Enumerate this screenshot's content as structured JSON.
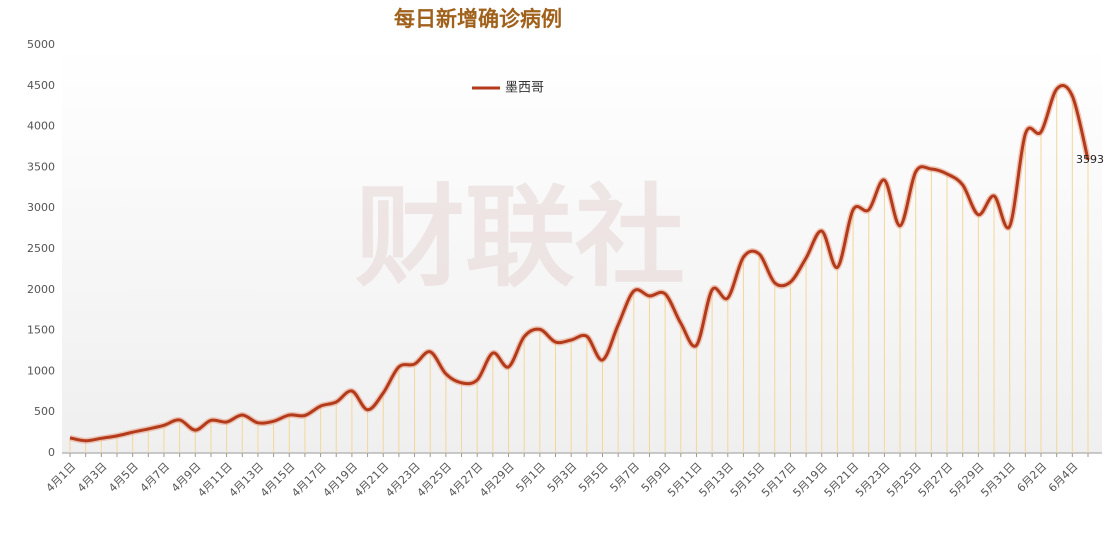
{
  "chart_data": {
    "type": "line",
    "title": "每日新增确诊病例",
    "watermark": "财联社",
    "categories": [
      "4月1日",
      null,
      "4月3日",
      null,
      "4月5日",
      null,
      "4月7日",
      null,
      "4月9日",
      null,
      "4月11日",
      null,
      "4月13日",
      null,
      "4月15日",
      null,
      "4月17日",
      null,
      "4月19日",
      null,
      "4月21日",
      null,
      "4月23日",
      null,
      "4月25日",
      null,
      "4月27日",
      null,
      "4月29日",
      null,
      "5月1日",
      null,
      "5月3日",
      null,
      "5月5日",
      null,
      "5月7日",
      null,
      "5月9日",
      null,
      "5月11日",
      null,
      "5月13日",
      null,
      "5月15日",
      null,
      "5月17日",
      null,
      "5月19日",
      null,
      "5月21日",
      null,
      "5月23日",
      null,
      "5月25日",
      null,
      "5月27日",
      null,
      "5月29日",
      null,
      "5月31日",
      null,
      "6月2日",
      null,
      "6月4日",
      null
    ],
    "series": [
      {
        "name": "墨西哥",
        "color": "#b33a1a",
        "values": [
          185,
          150,
          180,
          210,
          255,
          295,
          340,
          405,
          280,
          400,
          380,
          465,
          370,
          390,
          465,
          460,
          575,
          625,
          760,
          530,
          735,
          1055,
          1090,
          1240,
          970,
          860,
          895,
          1225,
          1055,
          1425,
          1515,
          1360,
          1385,
          1430,
          1140,
          1570,
          1985,
          1925,
          1950,
          1590,
          1320,
          2000,
          1900,
          2400,
          2440,
          2085,
          2095,
          2390,
          2720,
          2275,
          2980,
          2980,
          3345,
          2785,
          3445,
          3480,
          3420,
          3285,
          2920,
          3150,
          2780,
          3910,
          3935,
          4460,
          4375,
          3593
        ]
      }
    ],
    "labelled_point": 65,
    "ylim": [
      0,
      5000
    ],
    "yticks": [
      0,
      500,
      1000,
      1500,
      2000,
      2500,
      3000,
      3500,
      4000,
      4500,
      5000
    ],
    "grid": false
  }
}
